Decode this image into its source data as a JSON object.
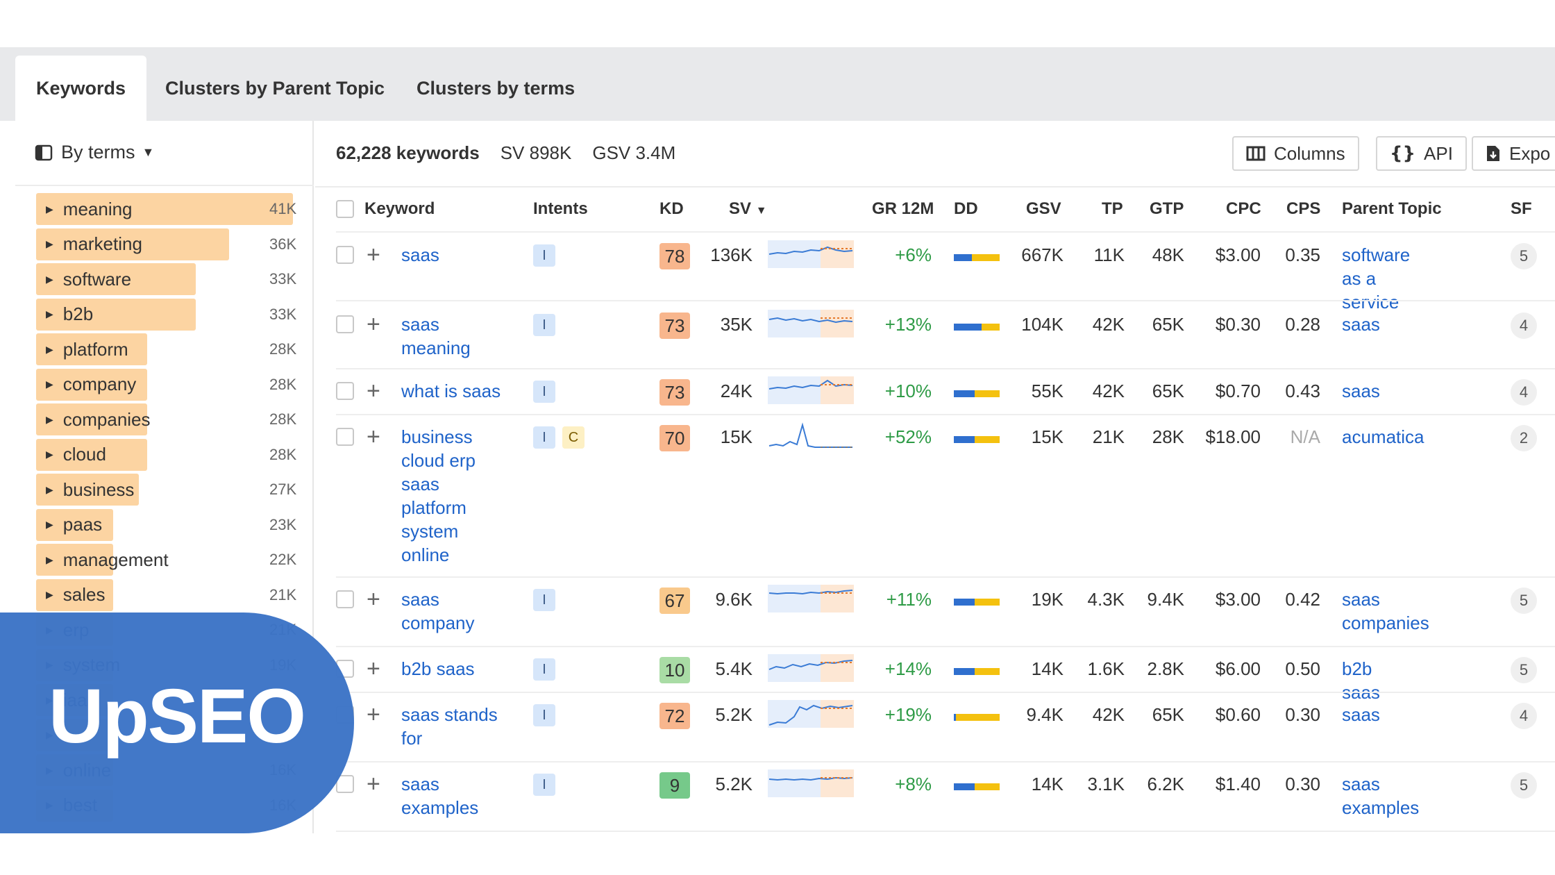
{
  "tabs": [
    {
      "label": "Keywords",
      "active": true
    },
    {
      "label": "Clusters by Parent Topic",
      "active": false
    },
    {
      "label": "Clusters by terms",
      "active": false
    }
  ],
  "sidebar": {
    "mode_label": "By terms",
    "terms": [
      {
        "label": "meaning",
        "count": "41K"
      },
      {
        "label": "marketing",
        "count": "36K"
      },
      {
        "label": "software",
        "count": "33K"
      },
      {
        "label": "b2b",
        "count": "33K"
      },
      {
        "label": "platform",
        "count": "28K"
      },
      {
        "label": "company",
        "count": "28K"
      },
      {
        "label": "companies",
        "count": "28K"
      },
      {
        "label": "cloud",
        "count": "28K"
      },
      {
        "label": "business",
        "count": "27K"
      },
      {
        "label": "paas",
        "count": "23K"
      },
      {
        "label": "management",
        "count": "22K"
      },
      {
        "label": "sales",
        "count": "21K"
      },
      {
        "label": "erp",
        "count": "21K"
      },
      {
        "label": "system",
        "count": "19K"
      },
      {
        "label": "iaas",
        "count": ""
      },
      {
        "label": "",
        "count": ""
      },
      {
        "label": "online",
        "count": "16K"
      },
      {
        "label": "best",
        "count": "16K"
      }
    ]
  },
  "summary": {
    "keywords": "62,228 keywords",
    "sv": "SV 898K",
    "gsv": "GSV 3.4M"
  },
  "toolbar": {
    "columns": "Columns",
    "api": "API",
    "export": "Expo"
  },
  "columns": {
    "keyword": "Keyword",
    "intents": "Intents",
    "kd": "KD",
    "sv": "SV",
    "gr": "GR 12M",
    "dd": "DD",
    "gsv": "GSV",
    "tp": "TP",
    "gtp": "GTP",
    "cpc": "CPC",
    "cps": "CPS",
    "parent": "Parent Topic",
    "sf": "SF"
  },
  "rows": [
    {
      "keyword": "saas",
      "intents": [
        "I"
      ],
      "kd": "78",
      "kd_color": "#f8b68d",
      "sv": "136K",
      "gr": "+6%",
      "gsv": "667K",
      "tp": "11K",
      "gtp": "48K",
      "cpc": "$3.00",
      "cps": "0.35",
      "parent": "software as a service",
      "sf": "5"
    },
    {
      "keyword": "saas meaning",
      "intents": [
        "I"
      ],
      "kd": "73",
      "kd_color": "#f8b68d",
      "sv": "35K",
      "gr": "+13%",
      "gsv": "104K",
      "tp": "42K",
      "gtp": "65K",
      "cpc": "$0.30",
      "cps": "0.28",
      "parent": "saas",
      "sf": "4"
    },
    {
      "keyword": "what is saas",
      "intents": [
        "I"
      ],
      "kd": "73",
      "kd_color": "#f8b68d",
      "sv": "24K",
      "gr": "+10%",
      "gsv": "55K",
      "tp": "42K",
      "gtp": "65K",
      "cpc": "$0.70",
      "cps": "0.43",
      "parent": "saas",
      "sf": "4"
    },
    {
      "keyword": "business cloud erp saas platform system online",
      "intents": [
        "I",
        "C"
      ],
      "kd": "70",
      "kd_color": "#f8b68d",
      "sv": "15K",
      "gr": "+52%",
      "gsv": "15K",
      "tp": "21K",
      "gtp": "28K",
      "cpc": "$18.00",
      "cps": "N/A",
      "parent": "acumatica",
      "sf": "2"
    },
    {
      "keyword": "saas company",
      "intents": [
        "I"
      ],
      "kd": "67",
      "kd_color": "#f9c98c",
      "sv": "9.6K",
      "gr": "+11%",
      "gsv": "19K",
      "tp": "4.3K",
      "gtp": "9.4K",
      "cpc": "$3.00",
      "cps": "0.42",
      "parent": "saas companies",
      "sf": "5"
    },
    {
      "keyword": "b2b saas",
      "intents": [
        "I"
      ],
      "kd": "10",
      "kd_color": "#a9dca5",
      "sv": "5.4K",
      "gr": "+14%",
      "gsv": "14K",
      "tp": "1.6K",
      "gtp": "2.8K",
      "cpc": "$6.00",
      "cps": "0.50",
      "parent": "b2b saas",
      "sf": "5"
    },
    {
      "keyword": "saas stands for",
      "intents": [
        "I"
      ],
      "kd": "72",
      "kd_color": "#f8b68d",
      "sv": "5.2K",
      "gr": "+19%",
      "gsv": "9.4K",
      "tp": "42K",
      "gtp": "65K",
      "cpc": "$0.60",
      "cps": "0.30",
      "parent": "saas",
      "sf": "4"
    },
    {
      "keyword": "saas examples",
      "intents": [
        "I"
      ],
      "kd": "9",
      "kd_color": "#76c98a",
      "sv": "5.2K",
      "gr": "+8%",
      "gsv": "14K",
      "tp": "3.1K",
      "gtp": "6.2K",
      "cpc": "$1.40",
      "cps": "0.30",
      "parent": "saas examples",
      "sf": "5"
    }
  ],
  "logo": {
    "text": "UpSEO"
  },
  "colors": {
    "link": "#1f63c9",
    "positive": "#2e9b46",
    "term_bar": "#fcd4a2",
    "logo_bg": "#3c74c6",
    "intent_informational": "#d6e6fa",
    "intent_commercial": "#fdf0c4"
  }
}
